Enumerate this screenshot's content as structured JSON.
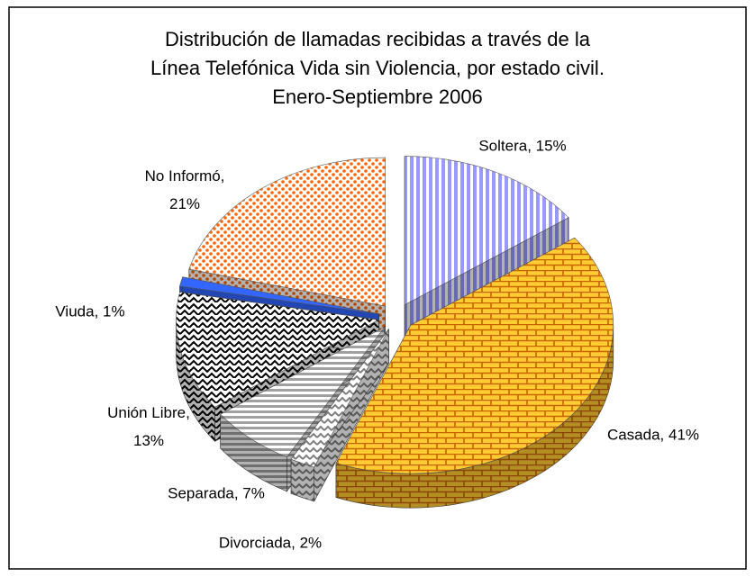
{
  "chart_data": {
    "type": "pie3d",
    "title": [
      "Distribución de llamadas recibidas a través de la",
      "Línea Telefónica Vida sin Violencia, por estado civil.",
      "Enero-Septiembre 2006"
    ],
    "labels": [
      "Soltera, 15%",
      "Casada, 41%",
      "Divorciada, 2%",
      "Separada, 7%",
      "Unión Libre, 13%",
      "Viuda, 1%",
      "No Informó, 21%"
    ],
    "values": [
      15,
      41,
      2,
      7,
      13,
      1,
      21
    ],
    "colors": [
      "#9999ff",
      "#ffcc33",
      "#808080",
      "#a0a0a0",
      "#000000",
      "#3366ff",
      "#ff6600"
    ]
  }
}
